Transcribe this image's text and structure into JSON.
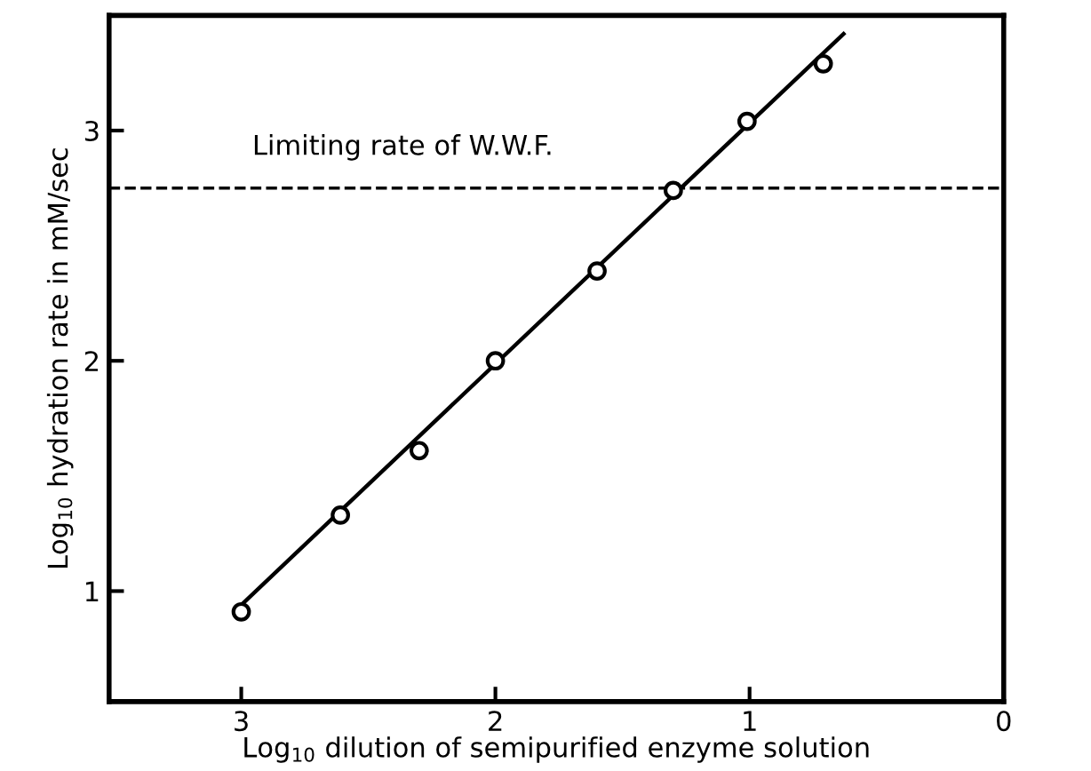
{
  "chart_data": {
    "type": "scatter",
    "xlabel": "Log$_{10}$ dilution of semipurified enzyme solution",
    "ylabel": "Log$_{10}$ hydration rate in mM/sec",
    "series": [
      {
        "color": "#000000",
        "marker": "circle",
        "x": [
          3.0,
          2.61,
          2.3,
          2.0,
          1.6,
          1.3,
          1.01,
          0.71
        ],
        "values": [
          0.91,
          1.33,
          1.61,
          2.0,
          2.39,
          2.74,
          3.04,
          3.29
        ]
      },
      {
        "type": "line",
        "color": "#000000",
        "line_style": "solid",
        "x": [
          3.0,
          0.63
        ],
        "values": [
          0.94,
          3.42
        ]
      }
    ],
    "ref_lines": [
      {
        "axis": "y",
        "value": 2.75,
        "label": "Limiting rate of W.W.F.",
        "line_style": "dashed",
        "color": "#000000"
      }
    ],
    "xlim": [
      3.52,
      0
    ],
    "ylim": [
      0.52,
      3.5
    ],
    "xticks": [
      3,
      2,
      1,
      0
    ],
    "yticks": [
      1,
      2,
      3
    ],
    "grid": false
  }
}
